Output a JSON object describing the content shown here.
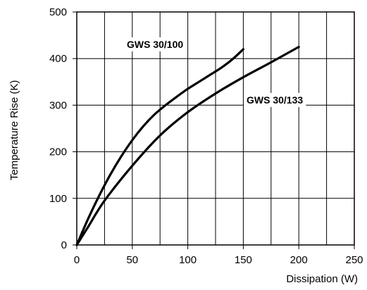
{
  "chart_data": {
    "type": "line",
    "title": "",
    "xlabel": "Dissipation (W)",
    "ylabel": "Temperature Rise (K)",
    "xlim": [
      0,
      250
    ],
    "ylim": [
      0,
      500
    ],
    "x_ticks": [
      0,
      50,
      100,
      150,
      200,
      250
    ],
    "y_ticks": [
      0,
      100,
      200,
      300,
      400,
      500
    ],
    "x_minor_step": 25,
    "y_minor_step": 100,
    "grid": true,
    "colors": {
      "axis": "#000000",
      "grid": "#000000",
      "series": "#000000",
      "label_background": "#ffffff"
    },
    "series": [
      {
        "name": "GWS 30/100",
        "x": [
          0,
          10,
          20,
          30,
          40,
          50,
          60,
          70,
          80,
          90,
          100,
          110,
          120,
          130,
          140,
          150
        ],
        "y": [
          0,
          55,
          105,
          150,
          190,
          225,
          255,
          280,
          300,
          318,
          335,
          350,
          365,
          380,
          398,
          420
        ]
      },
      {
        "name": "GWS 30/133",
        "x": [
          0,
          10,
          25,
          50,
          75,
          100,
          125,
          150,
          175,
          200
        ],
        "y": [
          0,
          38,
          95,
          170,
          235,
          285,
          325,
          360,
          392,
          425
        ]
      }
    ]
  }
}
